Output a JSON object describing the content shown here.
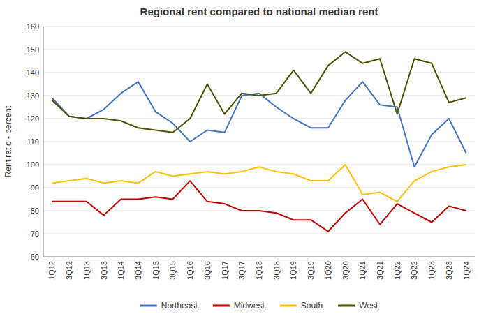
{
  "chart_data": {
    "type": "line",
    "title": "Regional rent compared to national median rent",
    "y_label": "Rent ratio - percent",
    "categories": [
      "1Q12",
      "3Q12",
      "1Q13",
      "3Q13",
      "1Q14",
      "3Q14",
      "1Q15",
      "3Q15",
      "1Q16",
      "3Q16",
      "1Q17",
      "3Q17",
      "1Q18",
      "3Q18",
      "1Q19",
      "3Q19",
      "1Q20",
      "3Q20",
      "1Q21",
      "3Q21",
      "1Q22",
      "3Q22",
      "1Q23",
      "3Q23",
      "1Q24"
    ],
    "series": [
      {
        "name": "Northeast",
        "color": "#4472C4",
        "values": [
          129,
          121,
          120,
          124,
          131,
          136,
          123,
          118,
          110,
          115,
          114,
          130,
          131,
          125,
          120,
          116,
          116,
          128,
          136,
          126,
          125,
          99,
          113,
          120,
          105
        ]
      },
      {
        "name": "Midwest",
        "color": "#C00000",
        "values": [
          84,
          84,
          84,
          78,
          85,
          85,
          86,
          85,
          93,
          84,
          83,
          80,
          80,
          79,
          76,
          76,
          71,
          79,
          85,
          74,
          83,
          79,
          75,
          82,
          80
        ]
      },
      {
        "name": "South",
        "color": "#FFC000",
        "values": [
          92,
          93,
          94,
          92,
          93,
          92,
          97,
          95,
          96,
          97,
          96,
          97,
          99,
          97,
          96,
          93,
          93,
          100,
          87,
          88,
          84,
          93,
          97,
          99,
          100
        ]
      },
      {
        "name": "West",
        "color": "#4D5000",
        "values": [
          128,
          121,
          120,
          120,
          119,
          116,
          115,
          114,
          120,
          135,
          122,
          131,
          130,
          131,
          141,
          131,
          143,
          149,
          144,
          146,
          122,
          146,
          144,
          127,
          129
        ]
      }
    ],
    "ylim": [
      60,
      160
    ],
    "yticks": [
      60,
      70,
      80,
      90,
      100,
      110,
      120,
      130,
      140,
      150,
      160
    ],
    "grid": true,
    "legend": "bottom"
  }
}
